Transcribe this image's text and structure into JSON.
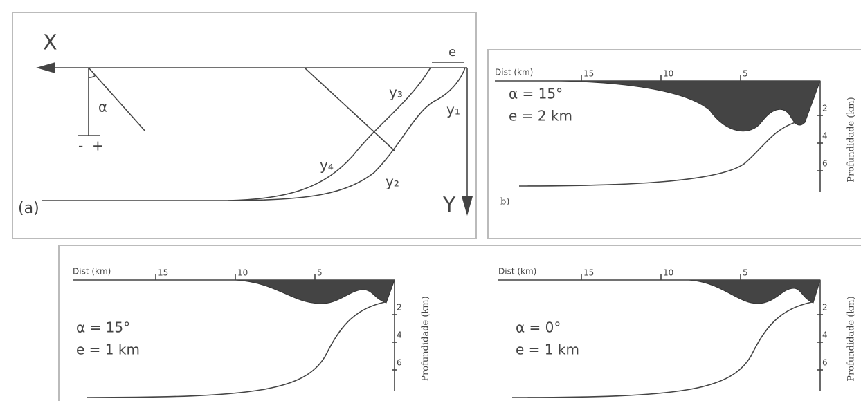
{
  "panel_a": {
    "x_axis": "X",
    "y_axis": "Y",
    "offset": "e",
    "angle": "α",
    "minus": "-",
    "plus": "+",
    "curves": [
      "y₃",
      "y₁",
      "y₄",
      "y₂"
    ],
    "label": "(a)"
  },
  "profiles": [
    {
      "dist_label": "Dist (km)",
      "dist_ticks": [
        15,
        10,
        5
      ],
      "depth_label": "Profundidade (km)",
      "depth_ticks": [
        2,
        4,
        6
      ],
      "alpha": "α = 15°",
      "e": "e = 2 km",
      "label": "b)"
    },
    {
      "dist_label": "Dist (km)",
      "dist_ticks": [
        15,
        10,
        5
      ],
      "depth_label": "Profundidade (km)",
      "depth_ticks": [
        2,
        4,
        6
      ],
      "alpha": "α = 15°",
      "e": "e = 1 km"
    },
    {
      "dist_label": "Dist (km)",
      "dist_ticks": [
        15,
        10,
        5
      ],
      "depth_label": "Profundidade (km)",
      "depth_ticks": [
        2,
        4,
        6
      ],
      "alpha": "α = 0°",
      "e": "e = 1 km"
    }
  ]
}
